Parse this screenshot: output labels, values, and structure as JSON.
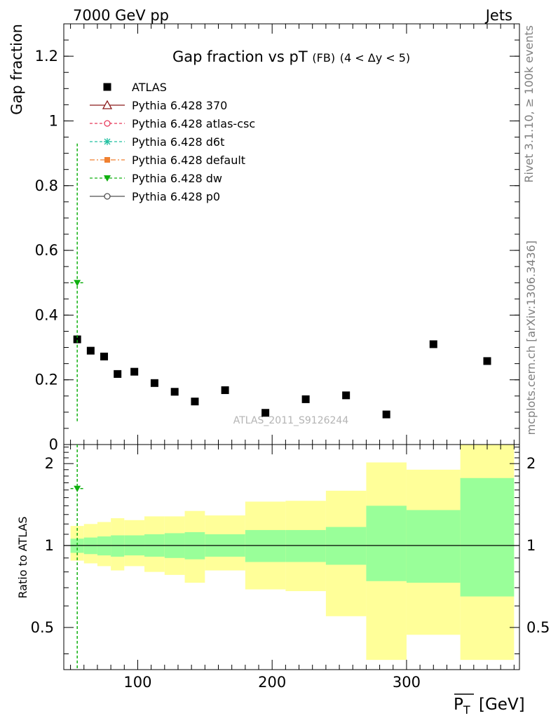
{
  "header": {
    "left": "7000 GeV pp",
    "right": "Jets"
  },
  "side_texts": {
    "rivet": "Rivet 3.1.10, ≥ 100k events",
    "mcplots": "mcplots.cern.ch [arXiv:1306.3436]"
  },
  "colors": {
    "data": "#000000",
    "p370": "#8b1a1a",
    "atlascsc": "#e8395a",
    "d6t": "#20c0a0",
    "default": "#f08030",
    "dw": "#10b010",
    "p0": "#505050",
    "band_outer": "#ffff99",
    "band_inner": "#99ff99"
  },
  "chart_data": [
    {
      "type": "scatter",
      "title_main": "Gap fraction vs pT",
      "title_sub": "(FB)",
      "title_range": "(4 < Δy < 5)",
      "ylabel": "Gap fraction",
      "watermark": "ATLAS_2011_S9126244",
      "xlim": [
        45,
        384
      ],
      "ylim": [
        0,
        1.3
      ],
      "yticks": [
        0,
        0.2,
        0.4,
        0.6,
        0.8,
        1,
        1.2
      ],
      "ytick_labels": [
        "0",
        "0.2",
        "0.4",
        "0.6",
        "0.8",
        "1",
        "1.2"
      ],
      "legend": [
        {
          "label": "ATLAS",
          "key": "data",
          "marker": "square",
          "line": "none"
        },
        {
          "label": "Pythia 6.428 370",
          "key": "p370",
          "marker": "triangle-open",
          "line": "solid"
        },
        {
          "label": "Pythia 6.428 atlas-csc",
          "key": "atlascsc",
          "marker": "circle-open",
          "line": "dashed"
        },
        {
          "label": "Pythia 6.428 d6t",
          "key": "d6t",
          "marker": "star",
          "line": "dashed"
        },
        {
          "label": "Pythia 6.428 default",
          "key": "default",
          "marker": "square-small",
          "line": "dashdot"
        },
        {
          "label": "Pythia 6.428 dw",
          "key": "dw",
          "marker": "triangle-down",
          "line": "dashed"
        },
        {
          "label": "Pythia 6.428 p0",
          "key": "p0",
          "marker": "circle-open",
          "line": "solid"
        }
      ],
      "series": [
        {
          "name": "ATLAS",
          "x": [
            55,
            65,
            75,
            85,
            97.5,
            112.5,
            127.5,
            142.5,
            165,
            195,
            225,
            255,
            285,
            320,
            360
          ],
          "y": [
            0.325,
            0.29,
            0.272,
            0.218,
            0.225,
            0.19,
            0.163,
            0.133,
            0.168,
            0.098,
            0.14,
            0.152,
            0.093,
            0.31,
            0.258
          ]
        },
        {
          "name": "Pythia 6.428 dw",
          "x": [
            55
          ],
          "y": [
            0.5
          ],
          "xerr": [
            5
          ],
          "yerr_low": [
            0.43
          ],
          "yerr_high": [
            0.43
          ]
        }
      ]
    },
    {
      "type": "area",
      "ylabel": "Ratio to ATLAS",
      "xlabel": "P_T [GeV]",
      "xlim": [
        45,
        384
      ],
      "ylim": [
        0.35,
        2.35
      ],
      "xticks": [
        100,
        200,
        300
      ],
      "xtick_labels": [
        "100",
        "200",
        "300"
      ],
      "yticks": [
        0.5,
        1,
        2
      ],
      "ytick_labels": [
        "0.5",
        "1",
        "2"
      ],
      "bands": {
        "edges": [
          50,
          60,
          70,
          80,
          90,
          105,
          120,
          135,
          150,
          180,
          210,
          240,
          270,
          300,
          340,
          380
        ],
        "inner_low": [
          0.94,
          0.93,
          0.92,
          0.91,
          0.92,
          0.91,
          0.9,
          0.89,
          0.91,
          0.87,
          0.87,
          0.85,
          0.74,
          0.73,
          0.65
        ],
        "inner_high": [
          1.06,
          1.07,
          1.08,
          1.09,
          1.09,
          1.1,
          1.11,
          1.12,
          1.1,
          1.14,
          1.14,
          1.17,
          1.4,
          1.35,
          1.77
        ],
        "outer_low": [
          0.88,
          0.86,
          0.84,
          0.81,
          0.84,
          0.8,
          0.78,
          0.73,
          0.81,
          0.69,
          0.68,
          0.55,
          0.38,
          0.47,
          0.38
        ],
        "outer_high": [
          1.18,
          1.2,
          1.22,
          1.26,
          1.24,
          1.28,
          1.28,
          1.34,
          1.29,
          1.45,
          1.46,
          1.59,
          2.02,
          1.9,
          2.35
        ]
      },
      "series": [
        {
          "name": "Pythia 6.428 dw",
          "x": [
            55
          ],
          "y": [
            1.62
          ],
          "xerr": [
            5
          ]
        }
      ]
    }
  ]
}
